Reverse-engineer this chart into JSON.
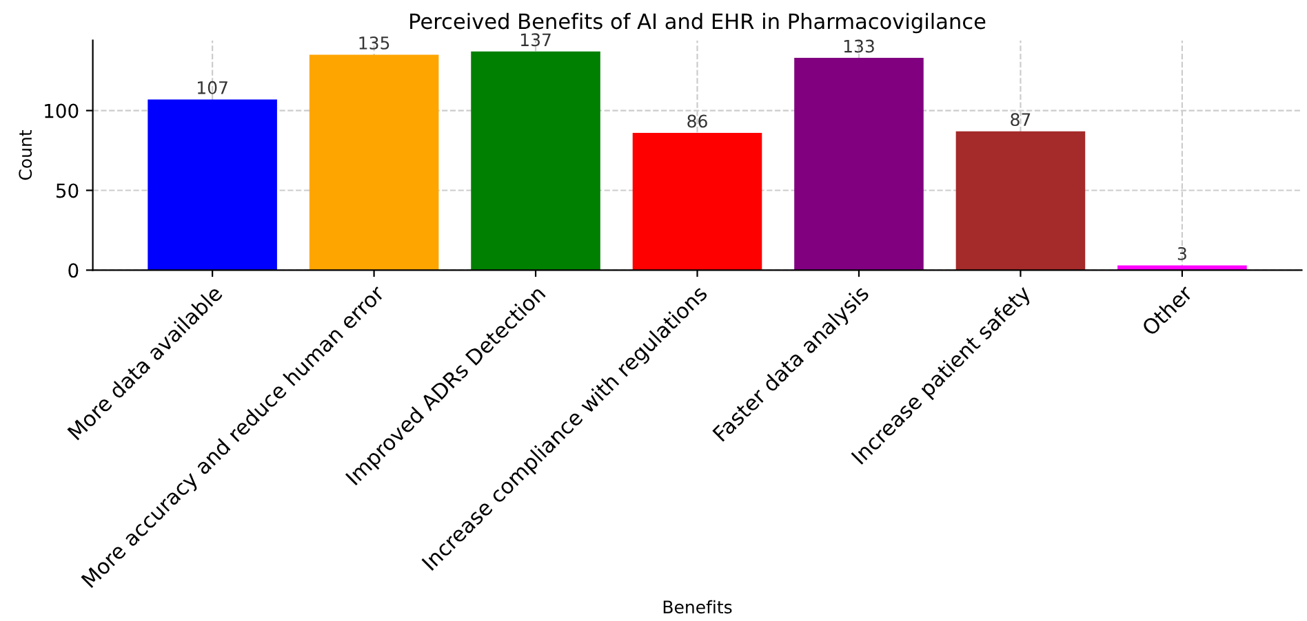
{
  "chart_data": {
    "type": "bar",
    "title": "Perceived Benefits of AI and EHR in Pharmacovigilance",
    "xlabel": "Benefits",
    "ylabel": "Count",
    "categories": [
      "More data available",
      "More accuracy and reduce human error",
      "Improved ADRs Detection",
      "Increase compliance with regulations",
      "Faster data analysis",
      "Increase patient safety",
      "Other"
    ],
    "values": [
      107,
      135,
      137,
      86,
      133,
      87,
      3
    ],
    "colors": [
      "#0000ff",
      "#ffa500",
      "#008000",
      "#ff0000",
      "#800080",
      "#a52a2a",
      "#ff00ff"
    ],
    "ylim": [
      0,
      144
    ],
    "yticks": [
      0,
      50,
      100
    ],
    "grid": true,
    "data_labels": true
  }
}
